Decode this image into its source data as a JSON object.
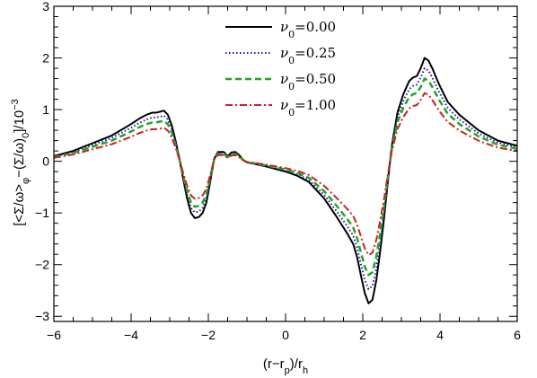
{
  "chart_data": {
    "type": "line",
    "title": "",
    "xlabel": {
      "prefix": "(r−r",
      "sub1": "p",
      "mid": ")/r",
      "sub2": "h"
    },
    "ylabel": {
      "p1": "[<Σ/ω>",
      "s1": "φ",
      "p2": "−(Σ/ω)",
      "s2": "0",
      "p3": "]/10",
      "sup": "−3"
    },
    "xlim": [
      -6,
      6
    ],
    "ylim": [
      -3.1,
      3
    ],
    "xticks": [
      "−6",
      "−4",
      "−2",
      "0",
      "2",
      "4",
      "6"
    ],
    "yticks": [
      "−3",
      "−2",
      "−1",
      "0",
      "1",
      "2",
      "3"
    ],
    "grid": false,
    "legend_position": "top-center",
    "base_curve": {
      "x": [
        -6,
        -5.5,
        -5,
        -4.5,
        -4,
        -3.8,
        -3.6,
        -3.45,
        -3.35,
        -3.25,
        -3.15,
        -3.05,
        -2.95,
        -2.85,
        -2.75,
        -2.65,
        -2.55,
        -2.45,
        -2.35,
        -2.25,
        -2.15,
        -2.05,
        -1.95,
        -1.85,
        -1.75,
        -1.6,
        -1.5,
        -1.4,
        -1.3,
        -1.2,
        -1.1,
        -1.0,
        -0.9,
        -0.8,
        -0.5,
        0,
        0.3,
        0.6,
        1.0,
        1.3,
        1.6,
        1.75,
        1.85,
        1.95,
        2.05,
        2.15,
        2.25,
        2.35,
        2.45,
        2.55,
        2.65,
        2.75,
        2.9,
        3.05,
        3.2,
        3.3,
        3.4,
        3.5,
        3.6,
        3.7,
        3.8,
        3.9,
        4.0,
        4.2,
        4.5,
        5.0,
        5.5,
        6.0
      ],
      "y": [
        0.1,
        0.2,
        0.35,
        0.5,
        0.72,
        0.82,
        0.9,
        0.94,
        0.94,
        0.96,
        0.98,
        0.9,
        0.7,
        0.4,
        0.05,
        -0.35,
        -0.72,
        -1.0,
        -1.1,
        -1.08,
        -1.0,
        -0.8,
        -0.4,
        0.05,
        0.18,
        0.18,
        0.1,
        0.17,
        0.18,
        0.12,
        0.03,
        -0.02,
        -0.04,
        -0.05,
        -0.1,
        -0.2,
        -0.28,
        -0.4,
        -0.72,
        -1.05,
        -1.4,
        -1.6,
        -1.85,
        -2.2,
        -2.55,
        -2.75,
        -2.68,
        -2.3,
        -1.75,
        -1.1,
        -0.4,
        0.3,
        0.95,
        1.3,
        1.55,
        1.62,
        1.65,
        1.8,
        2.0,
        1.95,
        1.8,
        1.62,
        1.45,
        1.15,
        0.9,
        0.6,
        0.4,
        0.3
      ]
    },
    "series": [
      {
        "name": "ν0=0.00",
        "param": "0.00",
        "scale": 1.0,
        "color": "#000000",
        "dash": "none",
        "width": 2
      },
      {
        "name": "ν0=0.25",
        "param": "0.25",
        "scale": 0.9,
        "color": "#1a1aa8",
        "dash": "1.5 2.5",
        "width": 2
      },
      {
        "name": "ν0=0.50",
        "param": "0.50",
        "scale": 0.8,
        "color": "#22a322",
        "dash": "7 4",
        "width": 2.5
      },
      {
        "name": "ν0=1.00",
        "param": "1.00",
        "scale": 0.66,
        "color": "#cc2222",
        "dash": "8 3 2 3",
        "width": 2
      }
    ]
  }
}
